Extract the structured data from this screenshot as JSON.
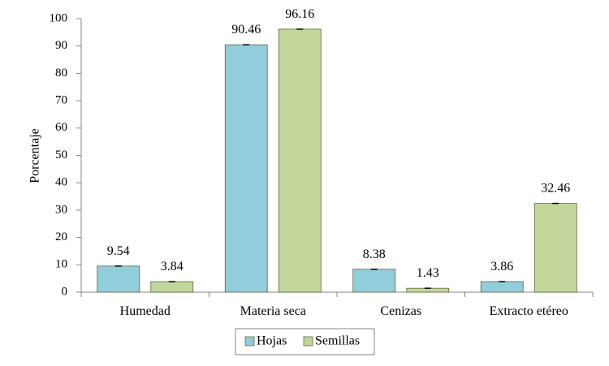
{
  "chart_data": {
    "type": "bar",
    "title": "",
    "xlabel": "",
    "ylabel": "Porcentaje",
    "ylim": [
      0,
      100
    ],
    "yticks": [
      0,
      10,
      20,
      30,
      40,
      50,
      60,
      70,
      80,
      90,
      100
    ],
    "categories": [
      "Humedad",
      "Materia seca",
      "Cenizas",
      "Extracto etéreo"
    ],
    "series": [
      {
        "name": "Hojas",
        "color": "#92CDDC",
        "values": [
          9.54,
          90.46,
          8.38,
          3.86
        ]
      },
      {
        "name": "Semillas",
        "color": "#C3D69B",
        "values": [
          3.84,
          96.16,
          1.43,
          32.46
        ]
      }
    ],
    "data_labels": [
      [
        "9.54",
        "90.46",
        "8.38",
        "3.86"
      ],
      [
        "3.84",
        "96.16",
        "1.43",
        "32.46"
      ]
    ],
    "error_bars": true,
    "grid": false,
    "legend_position": "bottom-center"
  }
}
